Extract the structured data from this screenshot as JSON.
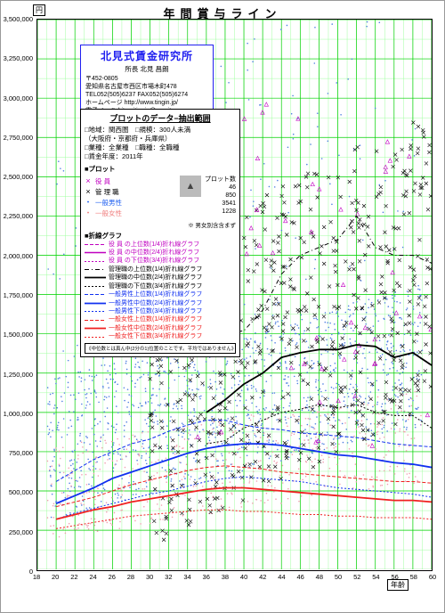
{
  "title": "年間賞与ライン",
  "unit_label": "円",
  "xaxis_label": "年齢",
  "chart": {
    "xlim": [
      18,
      60
    ],
    "ylim": [
      0,
      3500000
    ],
    "xtick_start": 18,
    "xtick_step": 2,
    "ytick_step": 250000,
    "grid_major_color": "#00d000",
    "grid_minor_color": "#a0ffa0",
    "background": "#ffffff"
  },
  "info": {
    "org": "北見式賃金研究所",
    "head": "所長  北見 昌朗",
    "zip": "〒452-0805",
    "addr": "愛知県名古屋市西区市場木町478",
    "tel": "TEL052(505)6237  FAX052(505)6274",
    "url": "ホームページ  http://www.tingin.jp/",
    "mail": "電子メール  kitamitingin@esprit.ocn"
  },
  "legend": {
    "title": "プロットのデータ−抽出範囲",
    "rows": [
      "□地域：関西圏　□規模：300人未満",
      "（大阪府・京都府・兵庫県）",
      "□業種：全業種　□職種：全職種",
      "□賃金年度：2011年"
    ],
    "plot_label": "■プロット",
    "count_label": "プロット数",
    "categories": [
      {
        "name": "役 員",
        "mark": "×",
        "color": "#c000c0",
        "count": "46"
      },
      {
        "name": "管 理 職",
        "mark": "×",
        "color": "#000000",
        "count": "850"
      },
      {
        "name": "一般男性",
        "mark": "・",
        "color": "#2060f0",
        "count": "3541"
      },
      {
        "name": "一般女性",
        "mark": "・",
        "color": "#f08080",
        "count": "1228"
      }
    ],
    "mixnote": "※ 男女別含含まず",
    "line_label": "■折線グラフ",
    "lines": [
      {
        "label": "役 員 の上位数(1/4)折れ線グラフ",
        "color": "#c000c0",
        "dash": "4 2",
        "w": 1
      },
      {
        "label": "役 員 の中位数(2/4)折れ線グラフ",
        "color": "#c000c0",
        "dash": "",
        "w": 1.6
      },
      {
        "label": "役 員 の下位数(3/4)折れ線グラフ",
        "color": "#c000c0",
        "dash": "2 2",
        "w": 1
      },
      {
        "label": "管理職の上位数(1/4)折れ線グラフ",
        "color": "#000000",
        "dash": "5 3 1 3",
        "w": 1
      },
      {
        "label": "管理職の中位数(2/4)折れ線グラフ",
        "color": "#000000",
        "dash": "",
        "w": 1.8
      },
      {
        "label": "管理職の下位数(3/4)折れ線グラフ",
        "color": "#000000",
        "dash": "2 2",
        "w": 1
      },
      {
        "label": "一般男性上位数(1/4)折れ線グラフ",
        "color": "#1030f0",
        "dash": "4 2",
        "w": 1
      },
      {
        "label": "一般男性中位数(2/4)折れ線グラフ",
        "color": "#1030f0",
        "dash": "",
        "w": 1.8
      },
      {
        "label": "一般男性下位数(3/4)折れ線グラフ",
        "color": "#1030f0",
        "dash": "2 2",
        "w": 1
      },
      {
        "label": "一般女性上位数(1/4)折れ線グラフ",
        "color": "#f02020",
        "dash": "4 2",
        "w": 1
      },
      {
        "label": "一般女性中位数(2/4)折れ線グラフ",
        "color": "#f02020",
        "dash": "",
        "w": 1.8
      },
      {
        "label": "一般女性下位数(3/4)折れ線グラフ",
        "color": "#f02020",
        "dash": "2 2",
        "w": 1
      }
    ],
    "footnote": "《中位数とは真ん中(2分の1)位置のことです。平均ではありません》"
  },
  "series": {
    "ages": [
      20,
      22,
      24,
      26,
      28,
      30,
      32,
      34,
      36,
      38,
      40,
      42,
      44,
      46,
      48,
      50,
      52,
      54,
      56,
      58,
      60
    ],
    "mgr_q1": [
      null,
      null,
      null,
      null,
      null,
      null,
      null,
      null,
      1480,
      1500,
      1520,
      1650,
      1880,
      2000,
      2050,
      2100,
      2250,
      2050,
      2000,
      2000,
      1950
    ],
    "mgr_med": [
      null,
      null,
      null,
      null,
      null,
      null,
      null,
      null,
      1000,
      1080,
      1180,
      1250,
      1350,
      1380,
      1400,
      1400,
      1430,
      1420,
      1350,
      1380,
      1300
    ],
    "mgr_q3": [
      null,
      null,
      null,
      null,
      null,
      null,
      null,
      null,
      800,
      820,
      900,
      950,
      1000,
      1020,
      1050,
      1030,
      1050,
      1000,
      980,
      980,
      900
    ],
    "male_q1": [
      560,
      630,
      700,
      750,
      800,
      830,
      880,
      920,
      950,
      950,
      920,
      900,
      890,
      870,
      860,
      850,
      840,
      820,
      800,
      790,
      780
    ],
    "male_med": [
      420,
      470,
      520,
      580,
      620,
      660,
      700,
      740,
      770,
      790,
      800,
      800,
      790,
      770,
      750,
      730,
      720,
      700,
      680,
      670,
      650
    ],
    "male_q3": [
      320,
      360,
      390,
      420,
      450,
      480,
      500,
      530,
      560,
      580,
      590,
      580,
      570,
      560,
      540,
      520,
      510,
      500,
      490,
      480,
      460
    ],
    "fem_q1": [
      400,
      430,
      460,
      500,
      540,
      570,
      600,
      630,
      650,
      660,
      650,
      640,
      620,
      610,
      600,
      590,
      580,
      570,
      560,
      560,
      550
    ],
    "fem_med": [
      320,
      350,
      380,
      400,
      430,
      450,
      470,
      490,
      510,
      520,
      520,
      510,
      500,
      490,
      480,
      470,
      460,
      450,
      440,
      440,
      430
    ],
    "fem_q3": [
      260,
      280,
      300,
      320,
      340,
      350,
      360,
      370,
      380,
      380,
      370,
      370,
      360,
      350,
      350,
      340,
      340,
      330,
      330,
      330,
      320
    ]
  },
  "scatter_seed": 42
}
